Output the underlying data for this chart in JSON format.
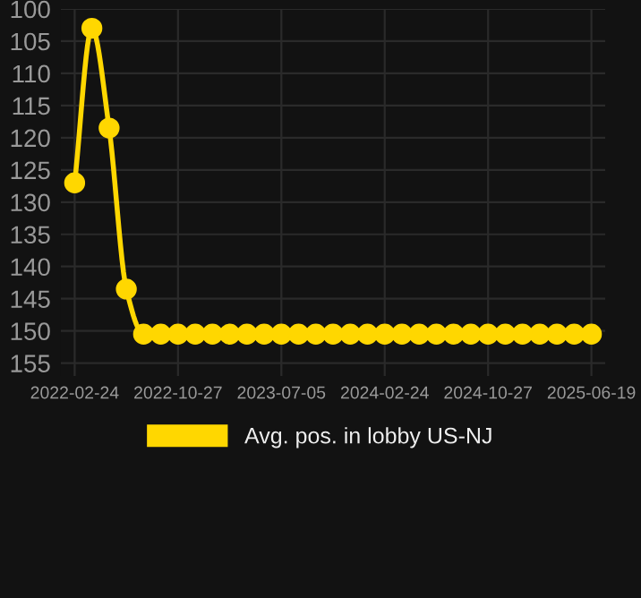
{
  "chart_data": {
    "type": "line",
    "categories": [
      "2022-02-24",
      null,
      null,
      null,
      null,
      null,
      "2022-10-27",
      null,
      null,
      null,
      null,
      null,
      "2023-07-05",
      null,
      null,
      null,
      null,
      null,
      "2024-02-24",
      null,
      null,
      null,
      null,
      null,
      "2024-10-27",
      null,
      null,
      null,
      null,
      null,
      "2025-06-19"
    ],
    "series": [
      {
        "name": "Avg. pos. in lobby US-NJ",
        "color": "#ffd700",
        "values": [
          127,
          103,
          118.5,
          143.5,
          150.5,
          150.5,
          150.5,
          150.5,
          150.5,
          150.5,
          150.5,
          150.5,
          150.5,
          150.5,
          150.5,
          150.5,
          150.5,
          150.5,
          150.5,
          150.5,
          150.5,
          150.5,
          150.5,
          150.5,
          150.5,
          150.5,
          150.5,
          150.5,
          150.5,
          150.5,
          150.5
        ]
      }
    ],
    "ylim": [
      157,
      100
    ],
    "yticks": [
      100,
      105,
      110,
      115,
      120,
      125,
      130,
      135,
      140,
      145,
      150,
      155
    ],
    "grid": true,
    "legend": "bottom",
    "marker": "circle",
    "line_style": "solid"
  }
}
